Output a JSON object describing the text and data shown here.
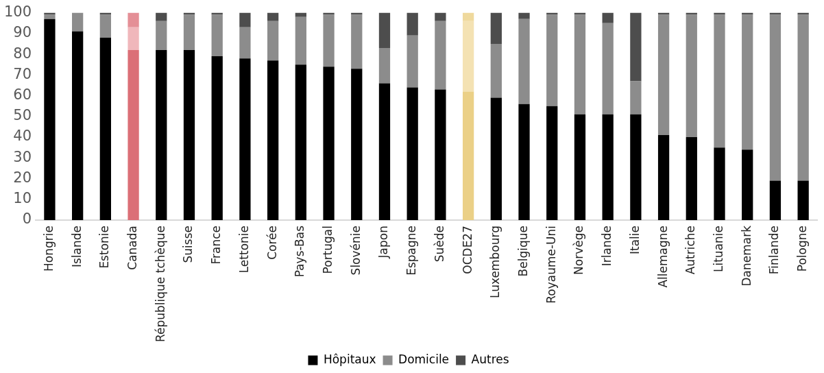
{
  "chart_data": {
    "type": "bar",
    "stacked": true,
    "categories": [
      "Hongrie",
      "Islande",
      "Estonie",
      "Canada",
      "République tchèque",
      "Suisse",
      "France",
      "Lettonie",
      "Corée",
      "Pays-Bas",
      "Portugal",
      "Slovénie",
      "Japon",
      "Espagne",
      "Suède",
      "OCDE27",
      "Luxembourg",
      "Belgique",
      "Royaume-Uni",
      "Norvège",
      "Irlande",
      "Italie",
      "Allemagne",
      "Autriche",
      "Lituanie",
      "Danemark",
      "Finlande",
      "Pologne"
    ],
    "series": [
      {
        "name": "Hôpitaux",
        "color": "#000000",
        "colors": [
          "#000000",
          "#000000",
          "#000000",
          "#db6f77",
          "#000000",
          "#000000",
          "#000000",
          "#000000",
          "#000000",
          "#000000",
          "#000000",
          "#000000",
          "#000000",
          "#000000",
          "#000000",
          "#ebd087",
          "#000000",
          "#000000",
          "#000000",
          "#000000",
          "#000000",
          "#000000",
          "#000000",
          "#000000",
          "#000000",
          "#000000",
          "#000000",
          "#000000"
        ],
        "values": [
          97,
          91,
          88,
          82,
          82,
          82,
          79,
          78,
          77,
          75,
          74,
          73,
          66,
          64,
          63,
          62,
          59,
          56,
          55,
          51,
          51,
          51,
          41,
          40,
          35,
          34,
          19,
          19
        ]
      },
      {
        "name": "Domicile",
        "color": "#8c8c8c",
        "colors": [
          "#8c8c8c",
          "#8c8c8c",
          "#8c8c8c",
          "#f0b7bb",
          "#8c8c8c",
          "#8c8c8c",
          "#8c8c8c",
          "#8c8c8c",
          "#8c8c8c",
          "#8c8c8c",
          "#8c8c8c",
          "#8c8c8c",
          "#8c8c8c",
          "#8c8c8c",
          "#8c8c8c",
          "#f4e2b3",
          "#8c8c8c",
          "#8c8c8c",
          "#8c8c8c",
          "#8c8c8c",
          "#8c8c8c",
          "#8c8c8c",
          "#8c8c8c",
          "#8c8c8c",
          "#8c8c8c",
          "#8c8c8c",
          "#8c8c8c",
          "#8c8c8c"
        ],
        "values": [
          2,
          9,
          11,
          11,
          14,
          17,
          20,
          15,
          19,
          23,
          25,
          26,
          17,
          25,
          33,
          34,
          26,
          41,
          44,
          48,
          44,
          16,
          58,
          59,
          64,
          65,
          80,
          80
        ]
      },
      {
        "name": "Autres",
        "color": "#4d4d4d",
        "colors": [
          "#4d4d4d",
          "#4d4d4d",
          "#4d4d4d",
          "#e48f96",
          "#4d4d4d",
          "#4d4d4d",
          "#4d4d4d",
          "#4d4d4d",
          "#4d4d4d",
          "#4d4d4d",
          "#4d4d4d",
          "#4d4d4d",
          "#4d4d4d",
          "#4d4d4d",
          "#4d4d4d",
          "#efd99d",
          "#4d4d4d",
          "#4d4d4d",
          "#4d4d4d",
          "#4d4d4d",
          "#4d4d4d",
          "#4d4d4d",
          "#4d4d4d",
          "#4d4d4d",
          "#4d4d4d",
          "#4d4d4d",
          "#4d4d4d",
          "#4d4d4d"
        ],
        "values": [
          1,
          0,
          1,
          7,
          4,
          1,
          1,
          7,
          4,
          2,
          1,
          1,
          17,
          11,
          4,
          4,
          15,
          3,
          1,
          1,
          5,
          33,
          1,
          1,
          1,
          1,
          1,
          1
        ]
      }
    ],
    "ylim": [
      0,
      100
    ],
    "yticks": [
      0,
      10,
      20,
      30,
      40,
      50,
      60,
      70,
      80,
      90,
      100
    ],
    "grid": false,
    "legend": "bottom"
  }
}
